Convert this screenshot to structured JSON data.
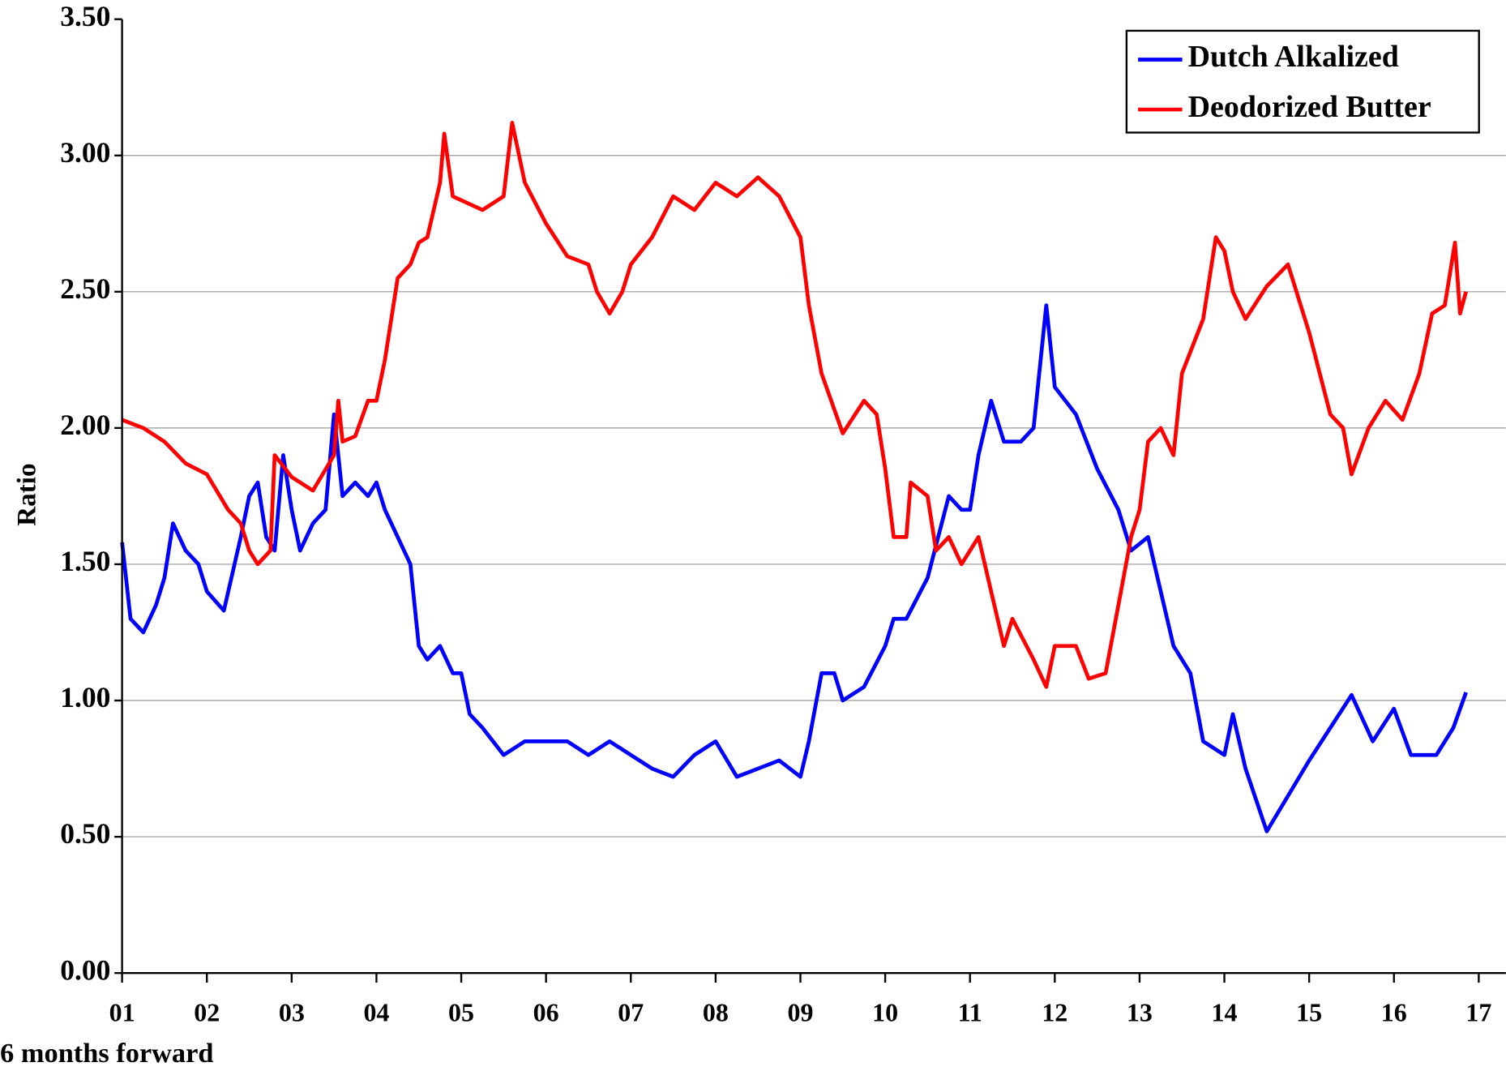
{
  "chart_data": {
    "type": "line",
    "y_label": "Ratio",
    "note": "6 months forward",
    "xlim": [
      1,
      17.32
    ],
    "xticks": [
      {
        "value": 1,
        "label": "01"
      },
      {
        "value": 2,
        "label": "02"
      },
      {
        "value": 3,
        "label": "03"
      },
      {
        "value": 4,
        "label": "04"
      },
      {
        "value": 5,
        "label": "05"
      },
      {
        "value": 6,
        "label": "06"
      },
      {
        "value": 7,
        "label": "07"
      },
      {
        "value": 8,
        "label": "08"
      },
      {
        "value": 9,
        "label": "09"
      },
      {
        "value": 10,
        "label": "10"
      },
      {
        "value": 11,
        "label": "11"
      },
      {
        "value": 12,
        "label": "12"
      },
      {
        "value": 13,
        "label": "13"
      },
      {
        "value": 14,
        "label": "14"
      },
      {
        "value": 15,
        "label": "15"
      },
      {
        "value": 16,
        "label": "16"
      },
      {
        "value": 17,
        "label": "17"
      }
    ],
    "ylim": [
      0,
      3.5
    ],
    "yticks": [
      {
        "value": 0,
        "label": "0.00"
      },
      {
        "value": 0.5,
        "label": "0.50"
      },
      {
        "value": 1,
        "label": "1.00"
      },
      {
        "value": 1.5,
        "label": "1.50"
      },
      {
        "value": 2,
        "label": "2.00"
      },
      {
        "value": 2.5,
        "label": "2.50"
      },
      {
        "value": 3,
        "label": "3.00"
      },
      {
        "value": 3.5,
        "label": "3.50"
      }
    ],
    "grid": true,
    "legend": "top-right",
    "series": [
      {
        "name": "Dutch Alkalized",
        "color": "#0000ff",
        "x": [
          1.0,
          1.1,
          1.25,
          1.4,
          1.5,
          1.6,
          1.75,
          1.9,
          2.0,
          2.2,
          2.4,
          2.5,
          2.6,
          2.7,
          2.8,
          2.9,
          3.0,
          3.1,
          3.25,
          3.4,
          3.5,
          3.6,
          3.75,
          3.9,
          4.0,
          4.1,
          4.25,
          4.4,
          4.5,
          4.6,
          4.75,
          4.9,
          5.0,
          5.1,
          5.25,
          5.5,
          5.75,
          6.0,
          6.25,
          6.5,
          6.75,
          7.0,
          7.25,
          7.5,
          7.75,
          8.0,
          8.25,
          8.5,
          8.75,
          9.0,
          9.1,
          9.25,
          9.4,
          9.5,
          9.75,
          10.0,
          10.1,
          10.25,
          10.5,
          10.75,
          10.9,
          11.0,
          11.1,
          11.25,
          11.4,
          11.6,
          11.75,
          11.9,
          12.0,
          12.25,
          12.5,
          12.75,
          12.9,
          13.1,
          13.25,
          13.4,
          13.6,
          13.75,
          14.0,
          14.1,
          14.25,
          14.5,
          14.75,
          15.0,
          15.25,
          15.5,
          15.75,
          16.0,
          16.2,
          16.5,
          16.7,
          16.85
        ],
        "values": [
          1.58,
          1.3,
          1.25,
          1.35,
          1.45,
          1.65,
          1.55,
          1.5,
          1.4,
          1.33,
          1.6,
          1.75,
          1.8,
          1.6,
          1.55,
          1.9,
          1.7,
          1.55,
          1.65,
          1.7,
          2.05,
          1.75,
          1.8,
          1.75,
          1.8,
          1.7,
          1.6,
          1.5,
          1.2,
          1.15,
          1.2,
          1.1,
          1.1,
          0.95,
          0.9,
          0.8,
          0.85,
          0.85,
          0.85,
          0.8,
          0.85,
          0.8,
          0.75,
          0.72,
          0.8,
          0.85,
          0.72,
          0.75,
          0.78,
          0.72,
          0.85,
          1.1,
          1.1,
          1.0,
          1.05,
          1.2,
          1.3,
          1.3,
          1.45,
          1.75,
          1.7,
          1.7,
          1.9,
          2.1,
          1.95,
          1.95,
          2.0,
          2.45,
          2.15,
          2.05,
          1.85,
          1.7,
          1.55,
          1.6,
          1.4,
          1.2,
          1.1,
          0.85,
          0.8,
          0.95,
          0.75,
          0.52,
          0.65,
          0.78,
          0.9,
          1.02,
          0.85,
          0.97,
          0.8,
          0.8,
          0.9,
          1.03
        ]
      },
      {
        "name": "Deodorized Butter",
        "color": "#ff0000",
        "x": [
          1.0,
          1.25,
          1.5,
          1.75,
          2.0,
          2.25,
          2.4,
          2.5,
          2.6,
          2.75,
          2.8,
          3.0,
          3.25,
          3.5,
          3.55,
          3.6,
          3.75,
          3.9,
          4.0,
          4.1,
          4.25,
          4.4,
          4.5,
          4.6,
          4.75,
          4.8,
          4.9,
          5.25,
          5.5,
          5.6,
          5.75,
          6.0,
          6.25,
          6.5,
          6.6,
          6.75,
          6.9,
          7.0,
          7.25,
          7.5,
          7.75,
          8.0,
          8.25,
          8.5,
          8.75,
          9.0,
          9.1,
          9.25,
          9.5,
          9.75,
          9.9,
          10.0,
          10.1,
          10.25,
          10.3,
          10.5,
          10.6,
          10.75,
          10.9,
          11.0,
          11.1,
          11.25,
          11.4,
          11.5,
          11.75,
          11.9,
          12.0,
          12.25,
          12.4,
          12.6,
          12.75,
          12.9,
          13.0,
          13.1,
          13.25,
          13.4,
          13.5,
          13.75,
          13.9,
          14.0,
          14.1,
          14.25,
          14.5,
          14.75,
          15.0,
          15.25,
          15.4,
          15.5,
          15.7,
          15.9,
          16.1,
          16.3,
          16.45,
          16.6,
          16.72,
          16.78,
          16.85
        ],
        "values": [
          2.03,
          2.0,
          1.95,
          1.87,
          1.83,
          1.7,
          1.65,
          1.55,
          1.5,
          1.55,
          1.9,
          1.82,
          1.77,
          1.9,
          2.1,
          1.95,
          1.97,
          2.1,
          2.1,
          2.25,
          2.55,
          2.6,
          2.68,
          2.7,
          2.9,
          3.08,
          2.85,
          2.8,
          2.85,
          3.12,
          2.9,
          2.75,
          2.63,
          2.6,
          2.5,
          2.42,
          2.5,
          2.6,
          2.7,
          2.85,
          2.8,
          2.9,
          2.85,
          2.92,
          2.85,
          2.7,
          2.45,
          2.2,
          1.98,
          2.1,
          2.05,
          1.85,
          1.6,
          1.6,
          1.8,
          1.75,
          1.55,
          1.6,
          1.5,
          1.55,
          1.6,
          1.4,
          1.2,
          1.3,
          1.15,
          1.05,
          1.2,
          1.2,
          1.08,
          1.1,
          1.35,
          1.6,
          1.7,
          1.95,
          2.0,
          1.9,
          2.2,
          2.4,
          2.7,
          2.65,
          2.5,
          2.4,
          2.52,
          2.6,
          2.35,
          2.05,
          2.0,
          1.83,
          2.0,
          2.1,
          2.03,
          2.2,
          2.42,
          2.45,
          2.68,
          2.42,
          2.5
        ]
      }
    ]
  }
}
